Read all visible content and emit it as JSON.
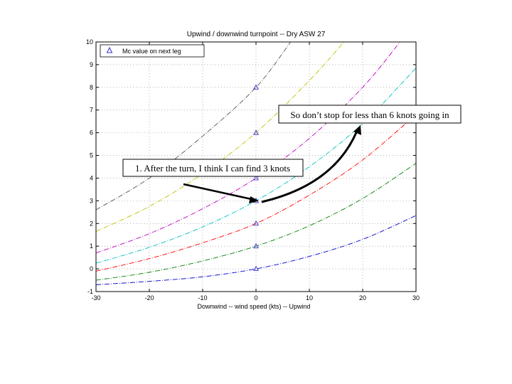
{
  "chart_data": {
    "type": "line",
    "title": "Upwind / downwind turnpoint -- Dry ASW 27",
    "xlabel": "Downwind -- wind speed (kts) -- Upwind",
    "ylabel": "",
    "xlim": [
      -30,
      30
    ],
    "ylim": [
      -1,
      10
    ],
    "xticks": [
      -30,
      -20,
      -10,
      0,
      10,
      20,
      30
    ],
    "yticks": [
      -1,
      0,
      1,
      2,
      3,
      4,
      5,
      6,
      7,
      8,
      9,
      10
    ],
    "grid": true,
    "legend": {
      "position": "top-left",
      "entries": [
        {
          "label": "Mc value on next leg",
          "marker": "triangle",
          "color": "#3333cc"
        }
      ]
    },
    "series": [
      {
        "mc": 0,
        "color": "#0000cc",
        "x": [
          -30,
          -20,
          -10,
          0,
          10,
          20,
          30
        ],
        "y": [
          -0.7,
          -0.55,
          -0.35,
          0.0,
          0.55,
          1.3,
          2.35
        ]
      },
      {
        "mc": 1,
        "color": "#008000",
        "x": [
          -30,
          -20,
          -10,
          0,
          10,
          20,
          30
        ],
        "y": [
          -0.5,
          -0.15,
          0.35,
          1.0,
          1.9,
          3.1,
          4.65
        ]
      },
      {
        "mc": 2,
        "color": "#ff0000",
        "x": [
          -30,
          -20,
          -10,
          0,
          10,
          20,
          30
        ],
        "y": [
          -0.1,
          0.45,
          1.15,
          2.0,
          3.25,
          4.8,
          6.8
        ]
      },
      {
        "mc": 3,
        "color": "#00bfbf",
        "x": [
          -30,
          -20,
          -10,
          0,
          10,
          20,
          30
        ],
        "y": [
          0.25,
          0.95,
          1.85,
          3.0,
          4.5,
          6.4,
          8.85
        ]
      },
      {
        "mc": 4,
        "color": "#bf00bf",
        "x": [
          -30,
          -20,
          -10,
          0,
          10,
          20,
          27
        ],
        "y": [
          0.7,
          1.55,
          2.65,
          4.0,
          5.75,
          8.0,
          10.0
        ]
      },
      {
        "mc": 6,
        "color": "#bfbf00",
        "x": [
          -30,
          -20,
          -10,
          0,
          10,
          16.5
        ],
        "y": [
          1.65,
          2.75,
          4.2,
          6.0,
          8.3,
          10.0
        ]
      },
      {
        "mc": 8,
        "color": "#555555",
        "x": [
          -30,
          -20,
          -10,
          0,
          6.5
        ],
        "y": [
          2.6,
          4.0,
          5.85,
          8.0,
          10.0
        ]
      }
    ],
    "markers": {
      "shape": "triangle",
      "color": "#3333cc",
      "x": [
        0,
        0,
        0,
        0,
        0,
        0,
        0
      ],
      "y": [
        0,
        1,
        2,
        3,
        4,
        6,
        8
      ]
    },
    "annotations": [
      {
        "text": "1. After the turn, I think I can find 3 knots"
      },
      {
        "text": "So don’t stop for less than 6 knots going in"
      }
    ]
  }
}
